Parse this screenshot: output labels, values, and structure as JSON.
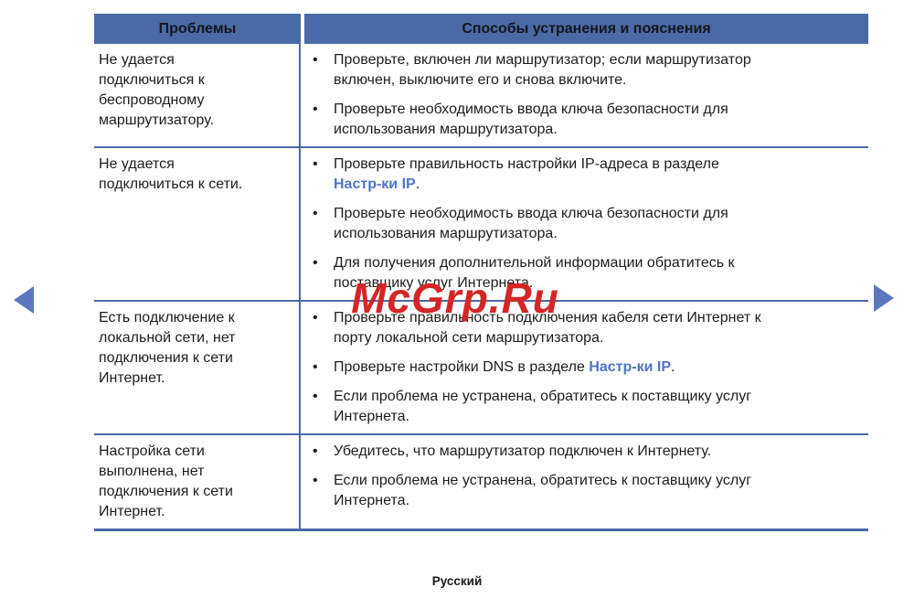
{
  "page": {
    "language_label": "Русский",
    "watermark": "McGrp.Ru"
  },
  "colors": {
    "header_bg": "#4a6aa5",
    "border": "#4a6aa5",
    "link": "#4f74c8",
    "watermark": "#d42626",
    "arrow": "#5c77bd",
    "text": "#1d1d1b"
  },
  "table": {
    "headers": [
      "Проблемы",
      "Способы устранения и пояснения"
    ],
    "rows": [
      {
        "problem": "Не удается\nподключиться к\nбеспроводному\nмаршрутизатору.",
        "solutions": [
          [
            {
              "text": "Проверьте, включен ли маршрутизатор; если маршрутизатор\nвключен, выключите его и снова включите."
            }
          ],
          [
            {
              "text": "Проверьте необходимость ввода ключа безопасности для\nиспользования маршрутизатора."
            }
          ]
        ]
      },
      {
        "problem": "Не удается\nподключиться к сети.",
        "solutions": [
          [
            {
              "text": "Проверьте правильность настройки IP-адреса в разделе\n"
            },
            {
              "text": "Настр-ки IP",
              "link": true
            },
            {
              "text": "."
            }
          ],
          [
            {
              "text": "Проверьте необходимость ввода ключа безопасности для\nиспользования маршрутизатора."
            }
          ],
          [
            {
              "text": "Для получения дополнительной информации обратитесь к\nпоставщику услуг Интернета."
            }
          ]
        ]
      },
      {
        "problem": "Есть подключение к\nлокальной сети, нет\nподключения к сети\nИнтернет.",
        "solutions": [
          [
            {
              "text": "Проверьте правильность подключения кабеля сети Интернет к\nпорту локальной сети маршрутизатора."
            }
          ],
          [
            {
              "text": "Проверьте настройки DNS в разделе "
            },
            {
              "text": "Настр-ки IP",
              "link": true
            },
            {
              "text": "."
            }
          ],
          [
            {
              "text": "Если проблема не устранена, обратитесь к поставщику услуг\nИнтернета."
            }
          ]
        ]
      },
      {
        "problem": "Настройка сети\nвыполнена, нет\nподключения к сети\nИнтернет.",
        "solutions": [
          [
            {
              "text": "Убедитесь, что маршрутизатор подключен к Интернету."
            }
          ],
          [
            {
              "text": "Если проблема не устранена, обратитесь к поставщику услуг\nИнтернета."
            }
          ]
        ]
      }
    ]
  },
  "navigation": {
    "prev_icon": "prev-page-arrow",
    "next_icon": "next-page-arrow"
  }
}
